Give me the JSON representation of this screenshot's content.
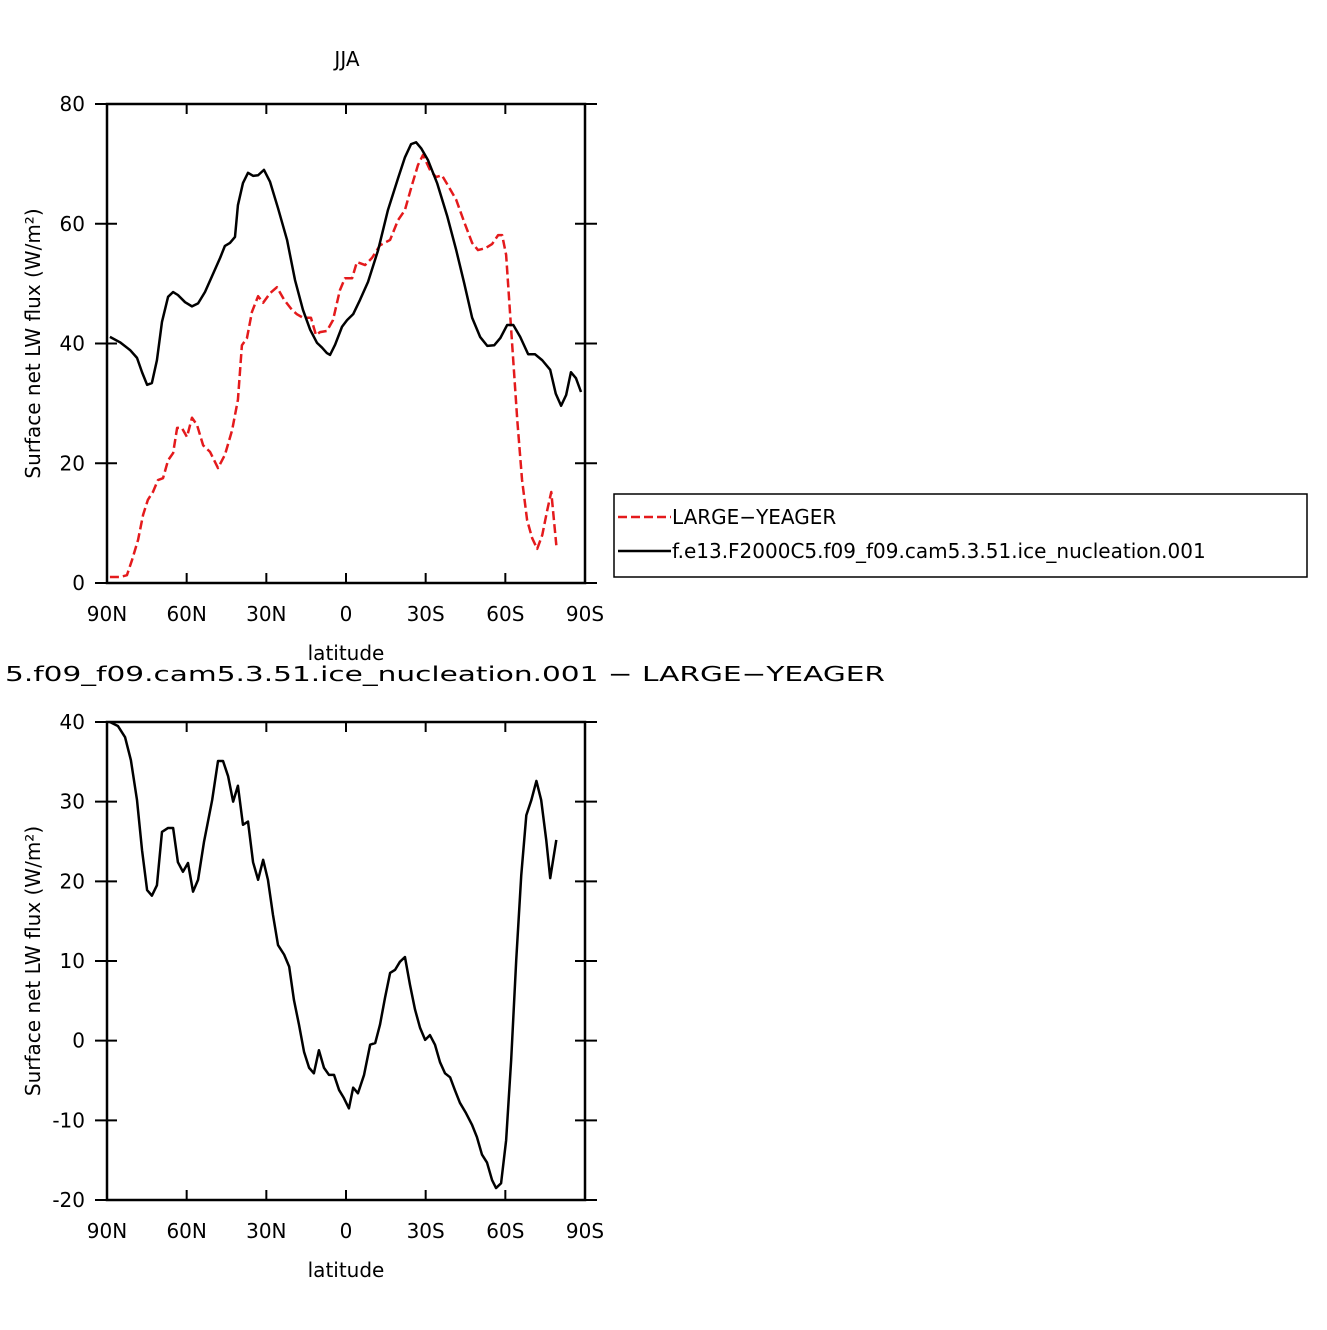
{
  "chart_data": [
    {
      "type": "line",
      "title": "JJA",
      "xlabel": "latitude",
      "ylabel": "Surface net LW flux (W/m²)",
      "xlim": [
        90,
        -90
      ],
      "xticks": [
        {
          "value": 90,
          "label": "90N"
        },
        {
          "value": 60,
          "label": "60N"
        },
        {
          "value": 30,
          "label": "30N"
        },
        0,
        {
          "value": -30,
          "label": "30S"
        },
        {
          "value": -60,
          "label": "60S"
        },
        {
          "value": -90,
          "label": "90S"
        }
      ],
      "ylim": [
        0,
        80
      ],
      "yticks": [
        0,
        20,
        40,
        60,
        80
      ],
      "legend": "outside-right",
      "series": [
        {
          "name": "LARGE−YEAGER",
          "color": "#e41a1c",
          "style": "dashed",
          "x": [
            88.9,
            85.1,
            82.5,
            80.6,
            78.3,
            76.4,
            74.6,
            72.7,
            70.8,
            68.9,
            67.0,
            65.1,
            63.6,
            61.8,
            59.9,
            58.0,
            56.1,
            53.8,
            51.2,
            48.2,
            45.6,
            42.9,
            40.7,
            39.2,
            37.3,
            35.4,
            33.1,
            31.2,
            28.6,
            26.0,
            23.3,
            20.3,
            18.5,
            16.2,
            13.2,
            11.3,
            9.8,
            7.2,
            4.9,
            2.3,
            0.4,
            -2.3,
            -4.1,
            -7.2,
            -9.8,
            -12.8,
            -16.6,
            -19.6,
            -22.2,
            -24.8,
            -27.1,
            -29.0,
            -31.6,
            -33.9,
            -36.1,
            -38.4,
            -41.5,
            -44.5,
            -47.5,
            -49.7,
            -52.4,
            -55.0,
            -57.3,
            -58.8,
            -60.3,
            -62.2,
            -64.5,
            -66.3,
            -68.2,
            -70.1,
            -72.0,
            -73.9,
            -75.8,
            -77.3,
            -79.2
          ],
          "values": [
            1.0,
            1.0,
            1.3,
            3.8,
            7.2,
            11.4,
            13.9,
            15.2,
            17.2,
            17.5,
            20.5,
            21.7,
            25.9,
            25.9,
            24.4,
            27.6,
            26.4,
            23.0,
            21.9,
            19.2,
            21.4,
            25.5,
            30.6,
            39.7,
            40.9,
            45.3,
            47.9,
            46.8,
            48.4,
            49.4,
            47.3,
            45.6,
            44.9,
            44.3,
            44.3,
            41.4,
            41.9,
            42.1,
            43.9,
            48.9,
            50.9,
            50.9,
            53.6,
            53.1,
            54.3,
            56.4,
            57.3,
            60.6,
            62.3,
            66.4,
            69.8,
            71.5,
            69.0,
            67.8,
            68.1,
            66.4,
            64.0,
            60.3,
            56.8,
            55.6,
            55.9,
            56.6,
            58.1,
            58.1,
            54.8,
            42.3,
            27.2,
            17.2,
            10.5,
            7.5,
            5.7,
            8.0,
            12.2,
            15.2,
            6.3
          ]
        },
        {
          "name": "f.e13.F2000C5.f09_f09.cam5.3.51.ice_nucleation.001",
          "color": "#000000",
          "style": "solid",
          "x": [
            88.9,
            85.1,
            81.3,
            78.7,
            76.8,
            74.9,
            73.1,
            71.2,
            69.3,
            67.0,
            65.1,
            63.3,
            60.6,
            58.0,
            55.7,
            53.1,
            50.4,
            47.4,
            45.6,
            43.7,
            41.8,
            40.7,
            38.8,
            36.9,
            35.0,
            33.1,
            30.9,
            28.6,
            25.6,
            22.2,
            19.2,
            16.2,
            13.5,
            10.9,
            9.0,
            7.2,
            6.0,
            4.1,
            1.5,
            -0.4,
            -2.7,
            -5.3,
            -8.3,
            -12.1,
            -15.8,
            -19.6,
            -22.2,
            -24.5,
            -26.4,
            -28.3,
            -30.9,
            -34.3,
            -38.1,
            -41.5,
            -44.5,
            -47.5,
            -50.5,
            -53.2,
            -55.8,
            -58.1,
            -60.7,
            -63.0,
            -65.6,
            -68.6,
            -71.2,
            -73.9,
            -76.9,
            -79.0,
            -81.0,
            -82.9,
            -84.7,
            -86.6,
            -88.5
          ],
          "values": [
            41.1,
            40.2,
            38.9,
            37.6,
            35.2,
            33.1,
            33.4,
            37.2,
            43.6,
            47.8,
            48.6,
            48.1,
            46.9,
            46.2,
            46.7,
            48.6,
            51.3,
            54.3,
            56.3,
            56.8,
            57.8,
            63.1,
            66.8,
            68.5,
            68.0,
            68.1,
            69.0,
            67.0,
            62.6,
            57.3,
            50.6,
            45.6,
            42.3,
            40.1,
            39.3,
            38.4,
            38.1,
            39.8,
            42.8,
            43.9,
            44.9,
            47.3,
            50.3,
            55.6,
            62.3,
            67.6,
            71.1,
            73.3,
            73.6,
            72.6,
            70.6,
            66.8,
            61.3,
            55.6,
            50.1,
            44.3,
            41.1,
            39.6,
            39.7,
            40.9,
            43.1,
            43.1,
            41.1,
            38.2,
            38.2,
            37.2,
            35.6,
            31.6,
            29.6,
            31.4,
            35.2,
            34.2,
            31.9
          ]
        }
      ]
    },
    {
      "type": "line",
      "title": "5.f09_f09.cam5.3.51.ice_nucleation.001  −  LARGE−YEAGER",
      "xlabel": "latitude",
      "ylabel": "Surface net LW flux (W/m²)",
      "xlim": [
        90,
        -90
      ],
      "xticks": [
        {
          "value": 90,
          "label": "90N"
        },
        {
          "value": 60,
          "label": "60N"
        },
        {
          "value": 30,
          "label": "30N"
        },
        0,
        {
          "value": -30,
          "label": "30S"
        },
        {
          "value": -60,
          "label": "60S"
        },
        {
          "value": -90,
          "label": "90S"
        }
      ],
      "ylim": [
        -20,
        40
      ],
      "yticks": [
        -20,
        -10,
        0,
        10,
        20,
        30,
        40
      ],
      "series": [
        {
          "color": "#000000",
          "style": "solid",
          "x": [
            88.9,
            85.9,
            83.2,
            81.0,
            78.7,
            76.8,
            74.9,
            73.1,
            71.2,
            69.3,
            67.0,
            65.1,
            63.3,
            61.4,
            59.5,
            57.6,
            55.7,
            53.5,
            50.4,
            48.2,
            46.3,
            44.4,
            42.5,
            40.7,
            38.8,
            36.9,
            35.0,
            33.1,
            31.2,
            29.4,
            27.5,
            25.6,
            23.3,
            21.4,
            19.6,
            17.7,
            15.8,
            13.9,
            12.1,
            10.2,
            8.3,
            6.4,
            4.5,
            2.6,
            0.8,
            -1.1,
            -2.7,
            -4.5,
            -6.8,
            -9.1,
            -11.0,
            -12.8,
            -14.7,
            -16.6,
            -18.5,
            -20.3,
            -22.2,
            -24.1,
            -26.0,
            -27.9,
            -29.8,
            -31.6,
            -33.5,
            -35.4,
            -37.3,
            -39.2,
            -41.0,
            -42.9,
            -45.2,
            -47.5,
            -49.3,
            -51.2,
            -53.1,
            -55.0,
            -56.5,
            -58.4,
            -60.3,
            -62.2,
            -64.1,
            -66.0,
            -67.9,
            -69.8,
            -71.7,
            -73.5,
            -75.4,
            -76.9,
            -79.2
          ],
          "values": [
            40.0,
            39.5,
            38.1,
            35.2,
            30.2,
            23.9,
            18.9,
            18.2,
            19.5,
            26.2,
            26.7,
            26.7,
            22.4,
            21.2,
            22.3,
            18.7,
            20.2,
            24.9,
            30.2,
            35.1,
            35.1,
            33.2,
            30.0,
            32.0,
            27.1,
            27.5,
            22.4,
            20.2,
            22.7,
            20.2,
            15.8,
            12.0,
            10.8,
            9.3,
            5.1,
            2.0,
            -1.4,
            -3.4,
            -4.1,
            -1.2,
            -3.4,
            -4.3,
            -4.3,
            -6.2,
            -7.2,
            -8.5,
            -5.9,
            -6.6,
            -4.3,
            -0.5,
            -0.3,
            2.0,
            5.4,
            8.5,
            8.9,
            9.9,
            10.5,
            7.0,
            3.9,
            1.6,
            0.1,
            0.7,
            -0.5,
            -2.7,
            -4.1,
            -4.6,
            -6.2,
            -7.8,
            -9.1,
            -10.6,
            -12.1,
            -14.3,
            -15.3,
            -17.5,
            -18.5,
            -17.9,
            -12.5,
            -2.4,
            10.1,
            20.8,
            28.3,
            30.2,
            32.6,
            30.2,
            25.2,
            20.4,
            25.2
          ]
        }
      ]
    }
  ]
}
